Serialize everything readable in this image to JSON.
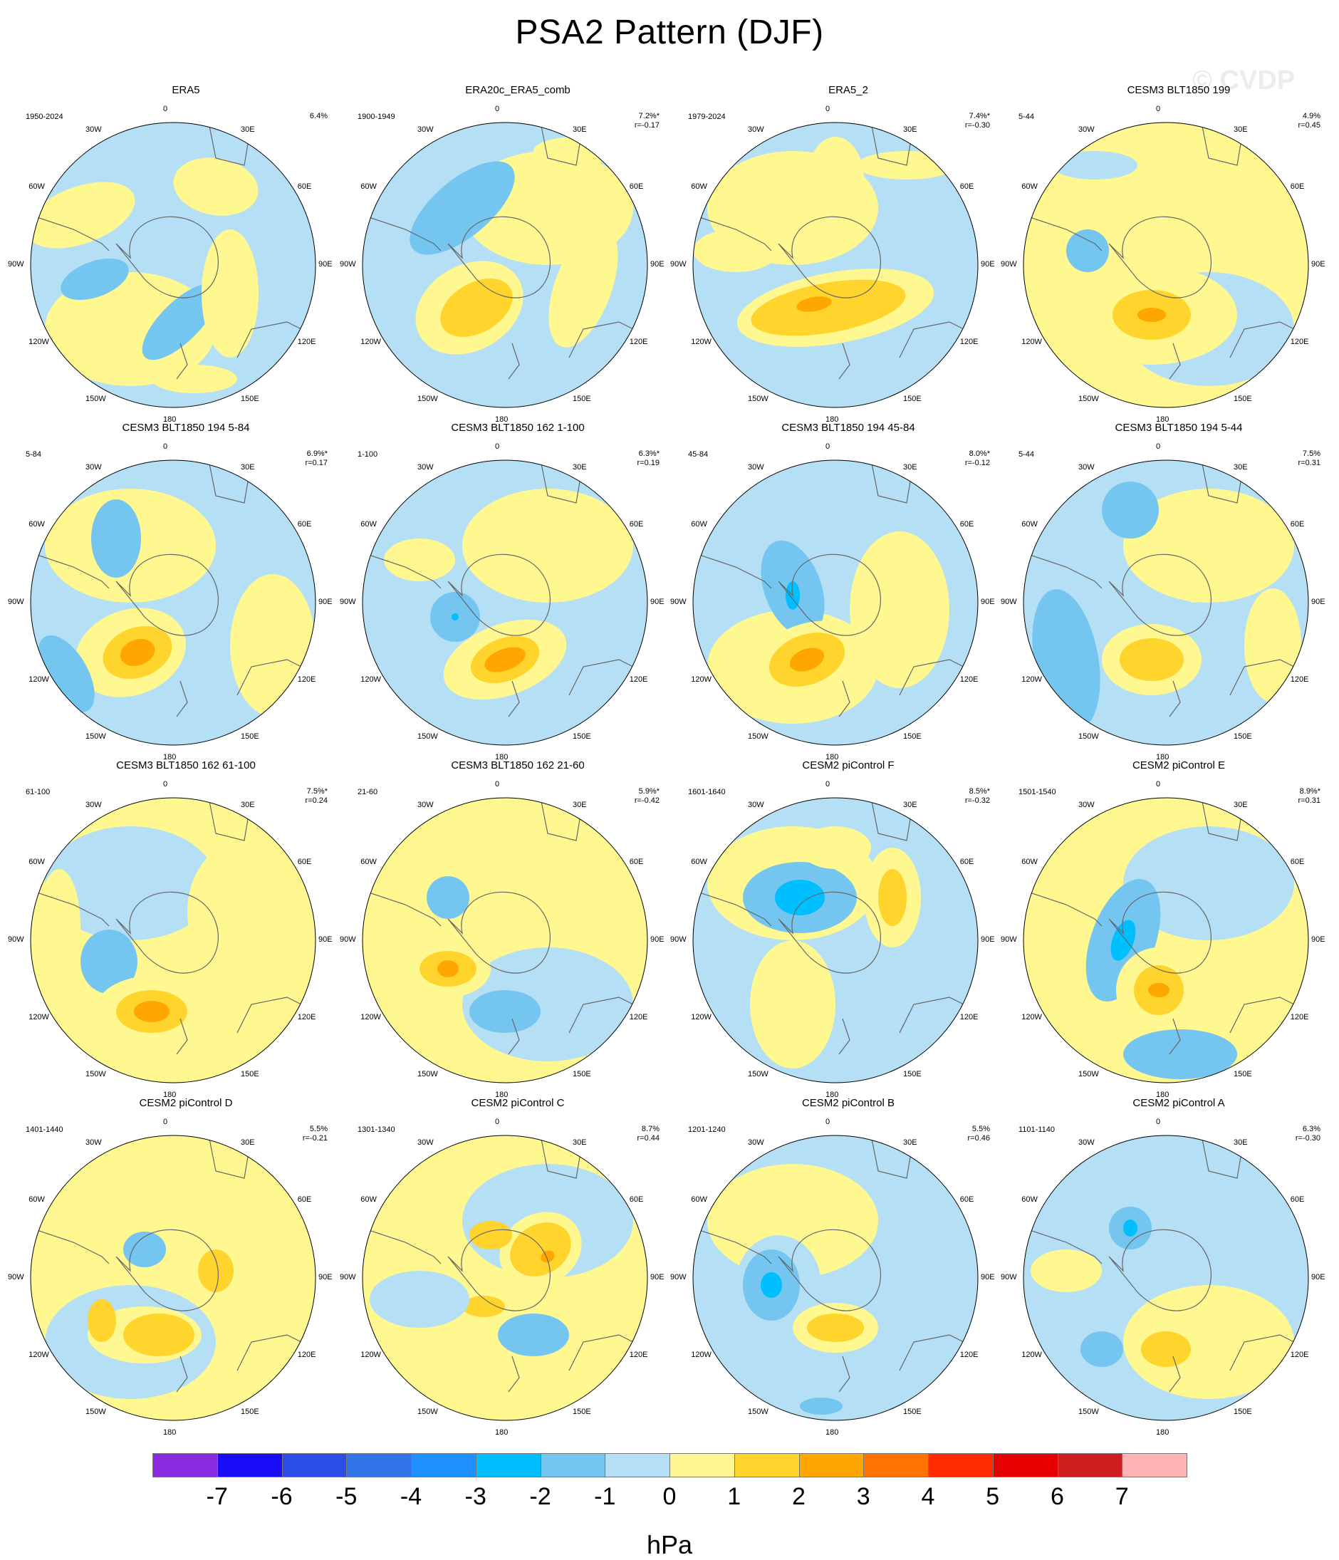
{
  "title": "PSA2 Pattern (DJF)",
  "watermark": "© CVDP",
  "axes": {
    "longitudes": [
      "0",
      "30E",
      "60E",
      "90E",
      "120E",
      "150E",
      "180",
      "150W",
      "120W",
      "90W",
      "60W",
      "30W"
    ]
  },
  "panels": [
    {
      "title": "ERA5",
      "period": "1950-2024",
      "variance": "6.4%",
      "corr": ""
    },
    {
      "title": "ERA20c_ERA5_comb",
      "period": "1900-1949",
      "variance": "7.2%*",
      "corr": "r=-0.17"
    },
    {
      "title": "ERA5_2",
      "period": "1979-2024",
      "variance": "7.4%*",
      "corr": "r=-0.30"
    },
    {
      "title": "CESM3 BLT1850 199",
      "period": "5-44",
      "variance": "4.9%",
      "corr": "r=0.45"
    },
    {
      "title": "CESM3 BLT1850 194 5-84",
      "period": "5-84",
      "variance": "6.9%*",
      "corr": "r=0.17"
    },
    {
      "title": "CESM3 BLT1850 162 1-100",
      "period": "1-100",
      "variance": "6.3%*",
      "corr": "r=0.19"
    },
    {
      "title": "CESM3 BLT1850 194 45-84",
      "period": "45-84",
      "variance": "8.0%*",
      "corr": "r=-0.12"
    },
    {
      "title": "CESM3 BLT1850 194 5-44",
      "period": "5-44",
      "variance": "7.5%",
      "corr": "r=0.31"
    },
    {
      "title": "CESM3 BLT1850 162 61-100",
      "period": "61-100",
      "variance": "7.5%*",
      "corr": "r=0.24"
    },
    {
      "title": "CESM3 BLT1850 162 21-60",
      "period": "21-60",
      "variance": "5.9%*",
      "corr": "r=-0.42"
    },
    {
      "title": "CESM2 piControl F",
      "period": "1601-1640",
      "variance": "8.5%*",
      "corr": "r=-0.32"
    },
    {
      "title": "CESM2 piControl E",
      "period": "1501-1540",
      "variance": "8.9%*",
      "corr": "r=0.31"
    },
    {
      "title": "CESM2 piControl D",
      "period": "1401-1440",
      "variance": "5.5%",
      "corr": "r=-0.21"
    },
    {
      "title": "CESM2 piControl C",
      "period": "1301-1340",
      "variance": "8.7%",
      "corr": "r=0.44"
    },
    {
      "title": "CESM2 piControl B",
      "period": "1201-1240",
      "variance": "5.5%",
      "corr": "r=0.46"
    },
    {
      "title": "CESM2 piControl A",
      "period": "1101-1140",
      "variance": "6.3%",
      "corr": "r=-0.30"
    }
  ],
  "colorbar": {
    "units": "hPa",
    "ticks": [
      "-7",
      "-6",
      "-5",
      "-4",
      "-3",
      "-2",
      "-1",
      "0",
      "1",
      "2",
      "3",
      "4",
      "5",
      "6",
      "7"
    ],
    "colors": [
      "#8a2be2",
      "#1a0df5",
      "#2c4de6",
      "#3374e8",
      "#1e90ff",
      "#00bfff",
      "#74c6f0",
      "#b4dff4",
      "#fff891",
      "#ffd42c",
      "#ffa600",
      "#ff7300",
      "#ff2a00",
      "#e60000",
      "#cc1e1e",
      "#ffb4b4"
    ]
  },
  "palette": {
    "neg1": "#b4dff4",
    "neg2": "#74c6f0",
    "neg3": "#00bfff",
    "pos1": "#fff891",
    "pos2": "#ffd42c",
    "pos3": "#ffa600",
    "pos4": "#ff7300",
    "coast": "#666666"
  }
}
